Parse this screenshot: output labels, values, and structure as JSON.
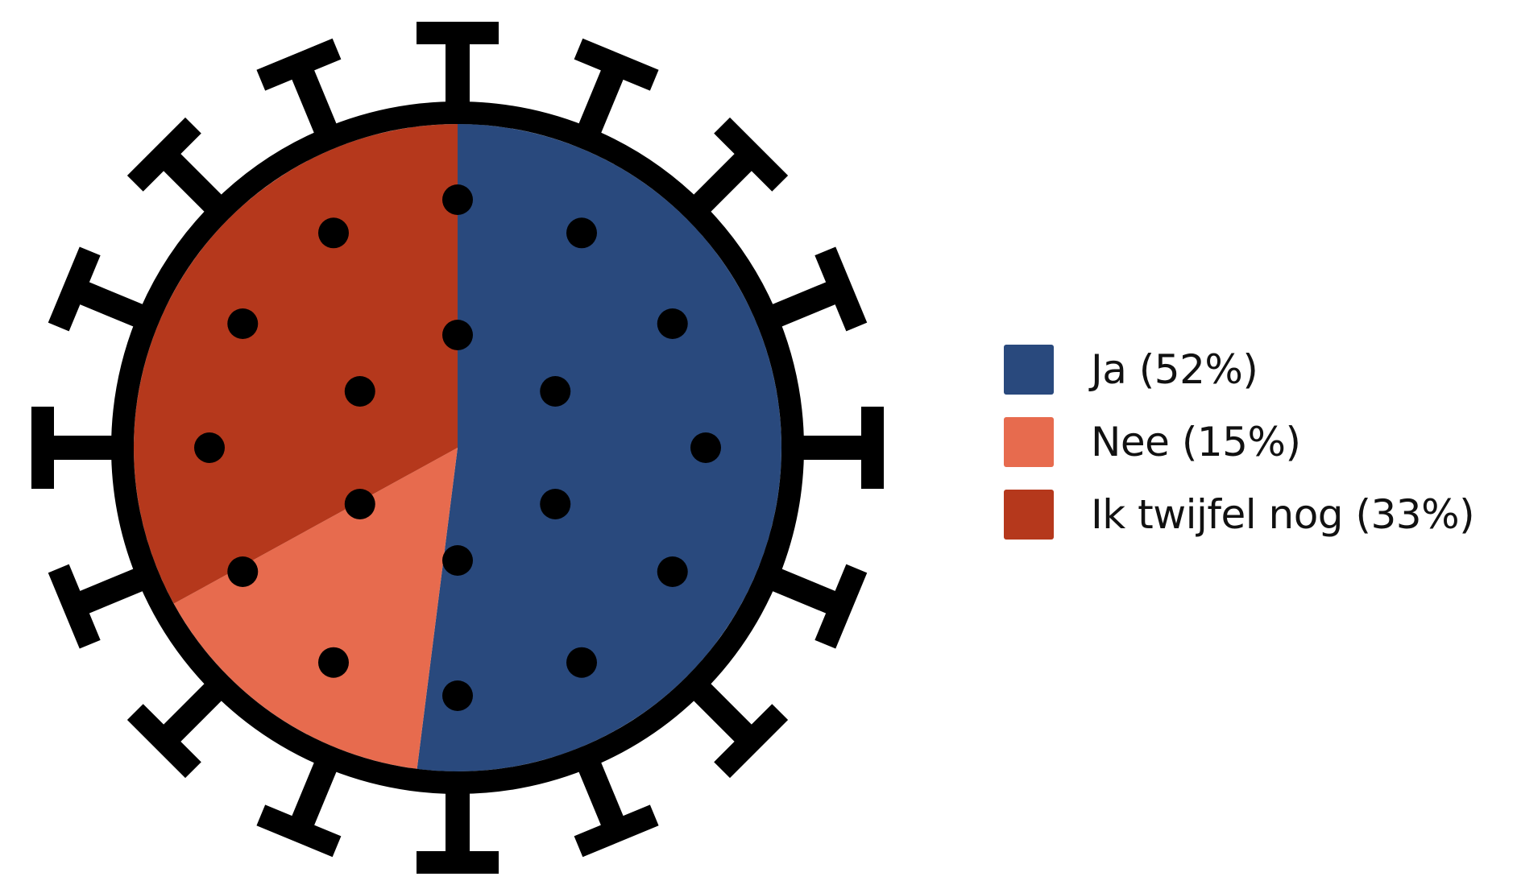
{
  "chart_data": {
    "type": "pie",
    "title": "",
    "categories": [
      "Ja (52%)",
      "Nee (15%)",
      "Ik twijfel nog (33%)"
    ],
    "values": [
      52,
      15,
      33
    ],
    "unit": "%",
    "colors": [
      "#29497d",
      "#e76b4e",
      "#b5381c"
    ],
    "legend_position": "right",
    "decoration": "virus-shaped pie: black ring with spikes and black dots"
  }
}
